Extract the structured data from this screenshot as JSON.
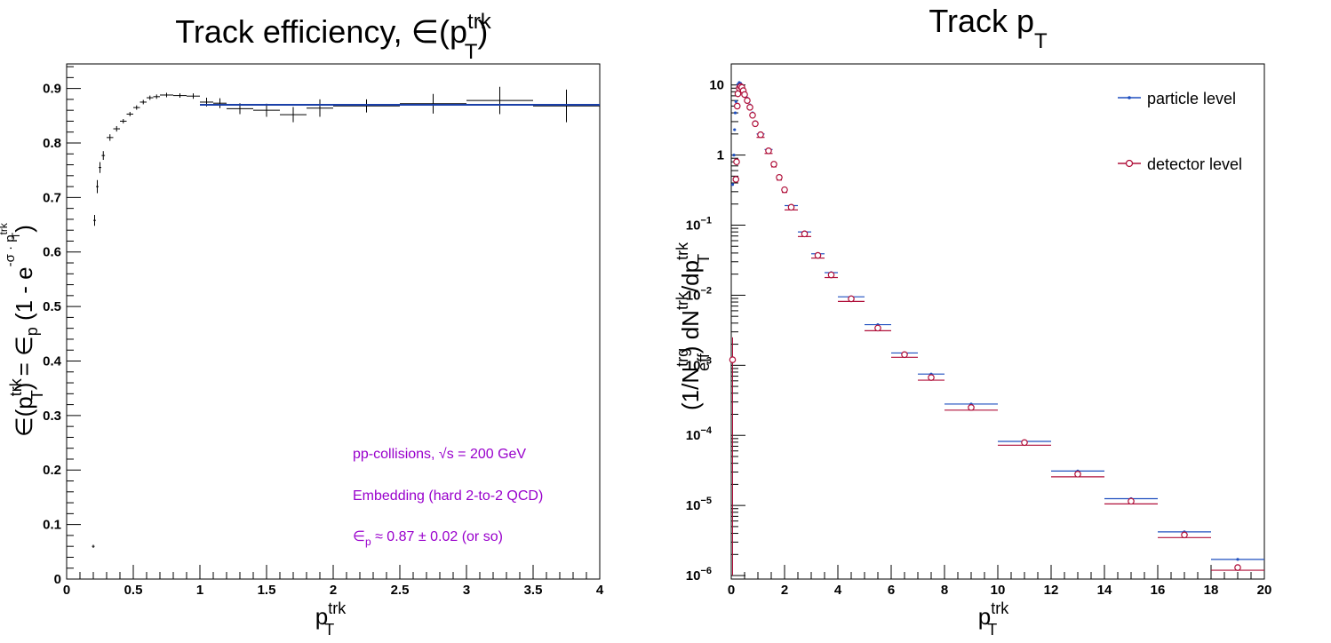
{
  "colors": {
    "particle": "#1f4fbf",
    "detector": "#b0103a",
    "fit": "#1a3fa8",
    "annotation": "#9900cc"
  },
  "chart_data": [
    {
      "type": "scatter",
      "title": "Track efficiency, ∈(p",
      "title_sup": "trk",
      "title_sub": "T",
      "title_close": ")",
      "xlabel": "p",
      "xlabel_sup": "trk",
      "xlabel_sub": "T",
      "ylabel": "∈(p",
      "ylabel_sup": "trk",
      "ylabel_sub": "T",
      "ylabel_mid": ") = ∈",
      "ylabel_sub2": "p",
      "ylabel_mid2": " (1 - e",
      "ylabel_sup2": "-σ · p",
      "ylabel_sup2_sup": "trk",
      "ylabel_sup2_sub": "T",
      "ylabel_end": ")",
      "xlim": [
        0,
        4
      ],
      "ylim": [
        0,
        0.945
      ],
      "xticks": [
        "0",
        "0.5",
        "1",
        "1.5",
        "2",
        "2.5",
        "3",
        "3.5",
        "4"
      ],
      "yticks": [
        "0",
        "0.1",
        "0.2",
        "0.3",
        "0.4",
        "0.5",
        "0.6",
        "0.7",
        "0.8",
        "0.9"
      ],
      "points": [
        {
          "x": 0.2,
          "y": 0.06,
          "xerr": 0.0,
          "yerr": 0.003
        },
        {
          "x": 0.21,
          "y": 0.658,
          "xerr": 0.005,
          "yerr": 0.01
        },
        {
          "x": 0.23,
          "y": 0.72,
          "xerr": 0.005,
          "yerr": 0.012
        },
        {
          "x": 0.25,
          "y": 0.755,
          "xerr": 0.01,
          "yerr": 0.01
        },
        {
          "x": 0.275,
          "y": 0.777,
          "xerr": 0.0125,
          "yerr": 0.008
        },
        {
          "x": 0.325,
          "y": 0.81,
          "xerr": 0.025,
          "yerr": 0.006
        },
        {
          "x": 0.375,
          "y": 0.826,
          "xerr": 0.025,
          "yerr": 0.005
        },
        {
          "x": 0.425,
          "y": 0.84,
          "xerr": 0.025,
          "yerr": 0.004
        },
        {
          "x": 0.475,
          "y": 0.853,
          "xerr": 0.025,
          "yerr": 0.004
        },
        {
          "x": 0.525,
          "y": 0.865,
          "xerr": 0.025,
          "yerr": 0.004
        },
        {
          "x": 0.575,
          "y": 0.875,
          "xerr": 0.025,
          "yerr": 0.004
        },
        {
          "x": 0.625,
          "y": 0.883,
          "xerr": 0.025,
          "yerr": 0.004
        },
        {
          "x": 0.675,
          "y": 0.885,
          "xerr": 0.025,
          "yerr": 0.004
        },
        {
          "x": 0.75,
          "y": 0.888,
          "xerr": 0.05,
          "yerr": 0.004
        },
        {
          "x": 0.85,
          "y": 0.887,
          "xerr": 0.05,
          "yerr": 0.004
        },
        {
          "x": 0.95,
          "y": 0.886,
          "xerr": 0.05,
          "yerr": 0.005
        },
        {
          "x": 1.05,
          "y": 0.875,
          "xerr": 0.05,
          "yerr": 0.008
        },
        {
          "x": 1.15,
          "y": 0.873,
          "xerr": 0.05,
          "yerr": 0.009
        },
        {
          "x": 1.3,
          "y": 0.863,
          "xerr": 0.1,
          "yerr": 0.01
        },
        {
          "x": 1.5,
          "y": 0.86,
          "xerr": 0.1,
          "yerr": 0.012
        },
        {
          "x": 1.7,
          "y": 0.852,
          "xerr": 0.1,
          "yerr": 0.014
        },
        {
          "x": 1.9,
          "y": 0.864,
          "xerr": 0.1,
          "yerr": 0.016
        },
        {
          "x": 2.25,
          "y": 0.868,
          "xerr": 0.25,
          "yerr": 0.012
        },
        {
          "x": 2.75,
          "y": 0.872,
          "xerr": 0.25,
          "yerr": 0.018
        },
        {
          "x": 3.25,
          "y": 0.878,
          "xerr": 0.25,
          "yerr": 0.025
        },
        {
          "x": 3.75,
          "y": 0.868,
          "xerr": 0.25,
          "yerr": 0.03
        }
      ],
      "fit": {
        "x0": 1.0,
        "x1": 4.0,
        "y": 0.87
      },
      "annotations": [
        {
          "text": "pp-collisions, √s = 200 GeV"
        },
        {
          "text": "Embedding (hard 2-to-2 QCD)"
        },
        {
          "text_main": "∈",
          "text_sub": "p",
          "text_rest": " ≈ 0.87 ± 0.02 (or so)"
        }
      ]
    },
    {
      "type": "scatter",
      "log_y": true,
      "title": "Track p",
      "title_sub": "T",
      "xlabel": "p",
      "xlabel_sup": "trk",
      "xlabel_sub": "T",
      "ylabel": "(1/N",
      "ylabel_sup": "trg",
      "ylabel_sub": "eff",
      "ylabel_mid": ") dN",
      "ylabel_sup2": "trk",
      "ylabel_mid2": "/dp",
      "ylabel_sup3": "trk",
      "ylabel_sub3": "T",
      "xlim": [
        0,
        20
      ],
      "ylim_log10": [
        -6.05,
        1.3
      ],
      "xticks": [
        "0",
        "2",
        "4",
        "6",
        "8",
        "10",
        "12",
        "14",
        "16",
        "18",
        "20"
      ],
      "yticks": [
        {
          "exp": 1,
          "label": "10"
        },
        {
          "exp": 0,
          "label": "1"
        },
        {
          "exp": -1,
          "base": "10",
          "sup": "−1"
        },
        {
          "exp": -2,
          "base": "10",
          "sup": "−2"
        },
        {
          "exp": -3,
          "base": "10",
          "sup": "−3"
        },
        {
          "exp": -4,
          "base": "10",
          "sup": "−4"
        },
        {
          "exp": -5,
          "base": "10",
          "sup": "−5"
        },
        {
          "exp": -6,
          "base": "10",
          "sup": "−6"
        }
      ],
      "series": [
        {
          "name": "particle level",
          "marker": "dot",
          "points": [
            {
              "x": 0.05,
              "y": 0.38,
              "xerr": 0.05
            },
            {
              "x": 0.1,
              "y": 1.0,
              "xerr": 0.025
            },
            {
              "x": 0.125,
              "y": 2.3,
              "xerr": 0.025
            },
            {
              "x": 0.15,
              "y": 4.0,
              "xerr": 0.025
            },
            {
              "x": 0.175,
              "y": 5.8,
              "xerr": 0.025
            },
            {
              "x": 0.2,
              "y": 7.5,
              "xerr": 0.025
            },
            {
              "x": 0.225,
              "y": 9.0,
              "xerr": 0.025
            },
            {
              "x": 0.25,
              "y": 10.2,
              "xerr": 0.025
            },
            {
              "x": 0.3,
              "y": 10.8,
              "xerr": 0.025
            },
            {
              "x": 0.35,
              "y": 10.5,
              "xerr": 0.025
            },
            {
              "x": 0.4,
              "y": 10.0,
              "xerr": 0.025
            },
            {
              "x": 0.45,
              "y": 9.0,
              "xerr": 0.025
            },
            {
              "x": 0.5,
              "y": 8.0,
              "xerr": 0.05
            },
            {
              "x": 0.6,
              "y": 6.5,
              "xerr": 0.05
            },
            {
              "x": 0.7,
              "y": 5.2,
              "xerr": 0.05
            },
            {
              "x": 0.8,
              "y": 4.0,
              "xerr": 0.05
            },
            {
              "x": 0.9,
              "y": 3.0,
              "xerr": 0.05
            },
            {
              "x": 1.1,
              "y": 2.0,
              "xerr": 0.15
            },
            {
              "x": 1.4,
              "y": 1.2,
              "xerr": 0.15
            },
            {
              "x": 1.6,
              "y": 0.78,
              "xerr": 0.1
            },
            {
              "x": 1.8,
              "y": 0.5,
              "xerr": 0.1
            },
            {
              "x": 2.0,
              "y": 0.33,
              "xerr": 0.1
            },
            {
              "x": 2.25,
              "y": 0.19,
              "xerr": 0.25
            },
            {
              "x": 2.75,
              "y": 0.08,
              "xerr": 0.25
            },
            {
              "x": 3.25,
              "y": 0.039,
              "xerr": 0.25
            },
            {
              "x": 3.75,
              "y": 0.021,
              "xerr": 0.25
            },
            {
              "x": 4.5,
              "y": 0.0095,
              "xerr": 0.5
            },
            {
              "x": 5.5,
              "y": 0.0038,
              "xerr": 0.5
            },
            {
              "x": 6.5,
              "y": 0.0015,
              "xerr": 0.5
            },
            {
              "x": 7.5,
              "y": 0.00075,
              "xerr": 0.5
            },
            {
              "x": 9.0,
              "y": 0.00028,
              "xerr": 1.0
            },
            {
              "x": 11.0,
              "y": 8.2e-05,
              "xerr": 1.0
            },
            {
              "x": 13.0,
              "y": 3.1e-05,
              "xerr": 1.0
            },
            {
              "x": 15.0,
              "y": 1.25e-05,
              "xerr": 1.0
            },
            {
              "x": 17.0,
              "y": 4.2e-06,
              "xerr": 1.0
            },
            {
              "x": 19.0,
              "y": 1.7e-06,
              "xerr": 1.0
            }
          ]
        },
        {
          "name": "detector level",
          "marker": "open-circle",
          "points": [
            {
              "x": 0.05,
              "y": 0.0012,
              "xerr": 0.05,
              "ylo": 1e-06,
              "yhi": 0.0025
            },
            {
              "x": 0.175,
              "y": 0.45,
              "xerr": 0.025
            },
            {
              "x": 0.2,
              "y": 0.8,
              "xerr": 0.025
            },
            {
              "x": 0.225,
              "y": 5.0,
              "xerr": 0.025
            },
            {
              "x": 0.25,
              "y": 7.5,
              "xerr": 0.025
            },
            {
              "x": 0.3,
              "y": 9.0,
              "xerr": 0.025
            },
            {
              "x": 0.35,
              "y": 9.5,
              "xerr": 0.025
            },
            {
              "x": 0.4,
              "y": 9.2,
              "xerr": 0.025
            },
            {
              "x": 0.45,
              "y": 8.3,
              "xerr": 0.025
            },
            {
              "x": 0.5,
              "y": 7.3,
              "xerr": 0.05
            },
            {
              "x": 0.6,
              "y": 6.0,
              "xerr": 0.05
            },
            {
              "x": 0.7,
              "y": 4.8,
              "xerr": 0.05
            },
            {
              "x": 0.8,
              "y": 3.7,
              "xerr": 0.05
            },
            {
              "x": 0.9,
              "y": 2.8,
              "xerr": 0.05
            },
            {
              "x": 1.1,
              "y": 1.95,
              "xerr": 0.15
            },
            {
              "x": 1.4,
              "y": 1.15,
              "xerr": 0.15
            },
            {
              "x": 1.6,
              "y": 0.74,
              "xerr": 0.1
            },
            {
              "x": 1.8,
              "y": 0.48,
              "xerr": 0.1
            },
            {
              "x": 2.0,
              "y": 0.32,
              "xerr": 0.1
            },
            {
              "x": 2.25,
              "y": 0.18,
              "xerr": 0.25
            },
            {
              "x": 2.75,
              "y": 0.075,
              "xerr": 0.25
            },
            {
              "x": 3.25,
              "y": 0.037,
              "xerr": 0.25
            },
            {
              "x": 3.75,
              "y": 0.0195,
              "xerr": 0.25
            },
            {
              "x": 4.5,
              "y": 0.0089,
              "xerr": 0.5
            },
            {
              "x": 5.5,
              "y": 0.0034,
              "xerr": 0.5
            },
            {
              "x": 6.5,
              "y": 0.00142,
              "xerr": 0.5
            },
            {
              "x": 7.5,
              "y": 0.00067,
              "xerr": 0.5
            },
            {
              "x": 9.0,
              "y": 0.00025,
              "xerr": 1.0
            },
            {
              "x": 11.0,
              "y": 7.9e-05,
              "xerr": 1.0
            },
            {
              "x": 13.0,
              "y": 2.8e-05,
              "xerr": 1.0
            },
            {
              "x": 15.0,
              "y": 1.15e-05,
              "xerr": 1.0
            },
            {
              "x": 17.0,
              "y": 3.8e-06,
              "xerr": 1.0
            },
            {
              "x": 19.0,
              "y": 1.3e-06,
              "xerr": 1.0
            }
          ]
        }
      ],
      "legend": [
        {
          "label": "particle level",
          "marker": "dot"
        },
        {
          "label": "detector level",
          "marker": "open-circle"
        }
      ]
    }
  ]
}
